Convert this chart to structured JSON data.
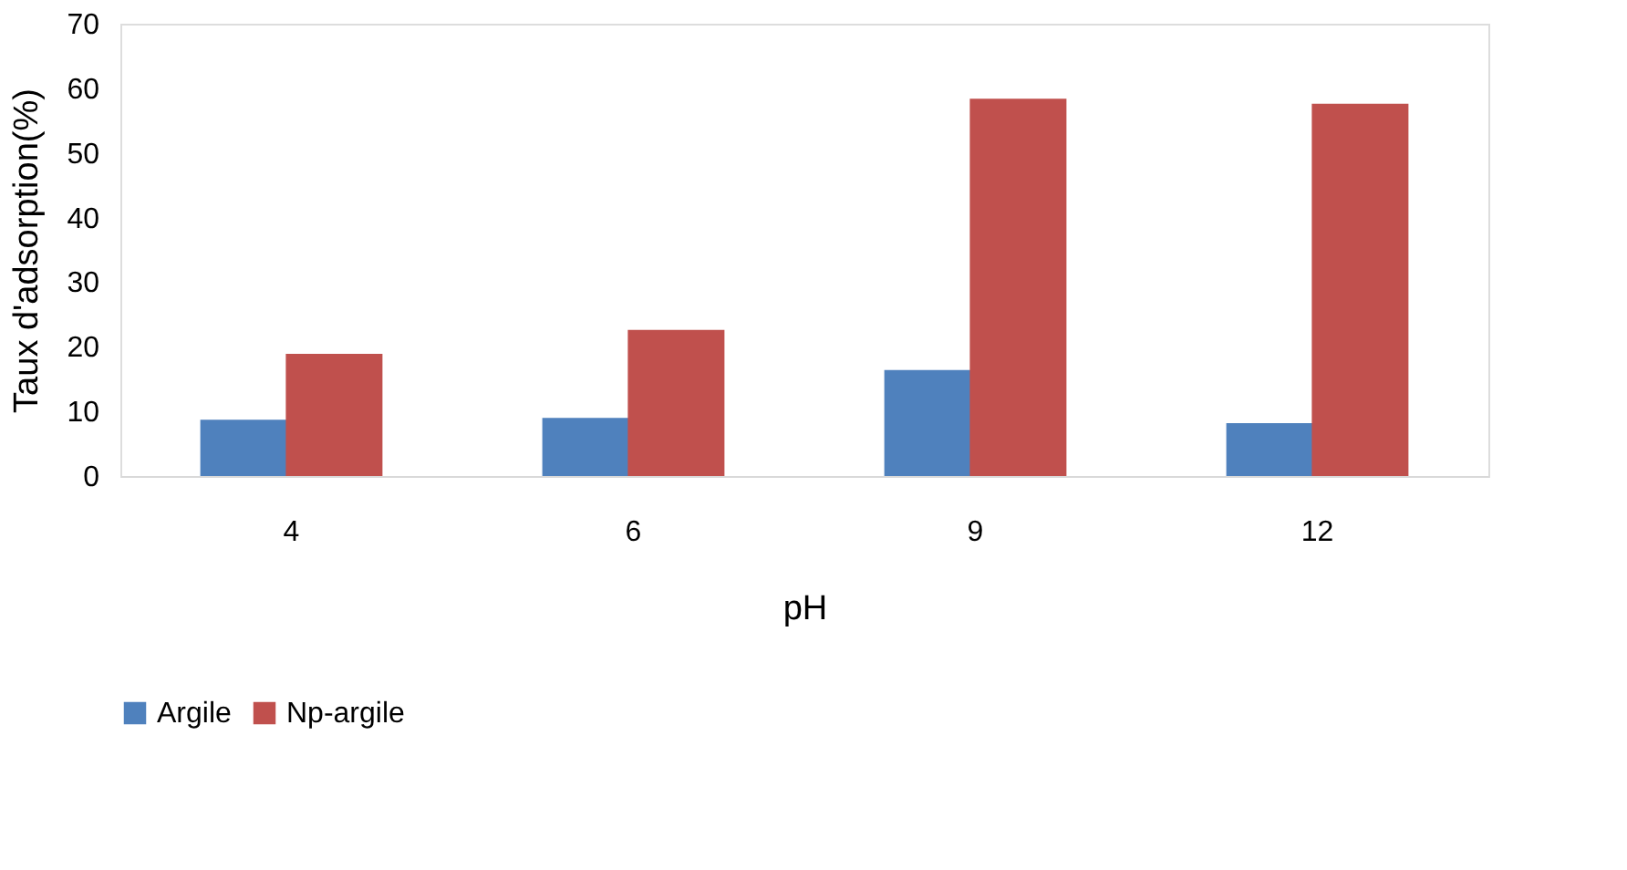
{
  "chart_data": {
    "type": "bar",
    "xlabel": "pH",
    "ylabel": "Taux d'adsorption(%)",
    "categories": [
      "4",
      "6",
      "9",
      "12"
    ],
    "series": [
      {
        "name": "Argile",
        "color": "#4f81bd",
        "values": [
          8.7,
          9.0,
          16.4,
          8.2
        ]
      },
      {
        "name": "Np-argile",
        "color": "#c0504d",
        "values": [
          18.9,
          22.6,
          58.4,
          57.6
        ]
      }
    ],
    "ylim": [
      0,
      70
    ],
    "yticks": [
      0,
      10,
      20,
      30,
      40,
      50,
      60,
      70
    ],
    "grid": false,
    "legend": "bottom"
  }
}
